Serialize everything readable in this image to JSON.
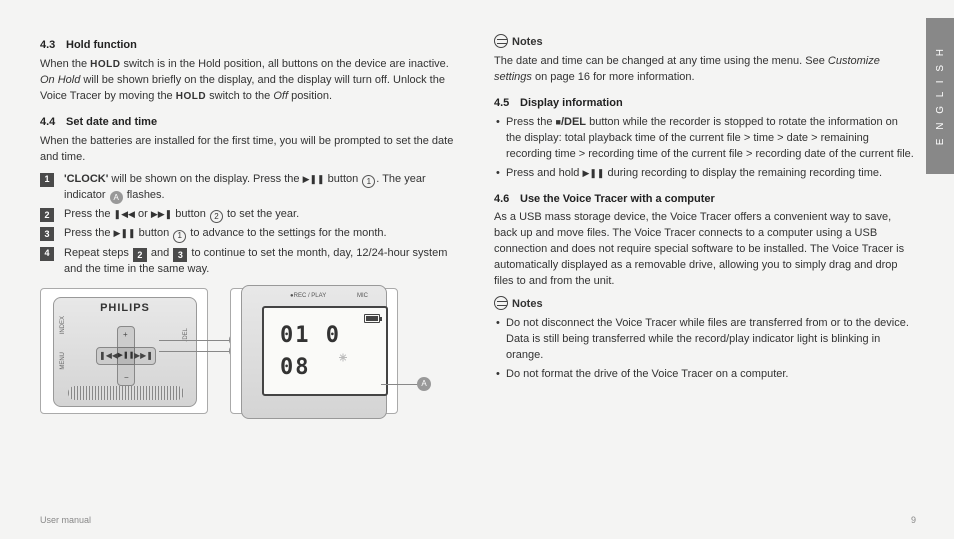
{
  "page_number": "9",
  "footer_left": "User manual",
  "sidebar": "E N G L I S H",
  "brand": "PHILIPS",
  "left": {
    "s43": {
      "num": "4.3",
      "title": "Hold function",
      "p1_a": "When the ",
      "p1_bold1": "HOLD",
      "p1_b": " switch is in the Hold position, all buttons on the device are inactive. ",
      "p1_em": "On Hold",
      "p1_c": " will be shown briefly on the display, and the display will turn off. Unlock the Voice Tracer by moving the ",
      "p1_bold2": "HOLD",
      "p1_d": " switch to the ",
      "p1_em2": "Off",
      "p1_e": " position."
    },
    "s44": {
      "num": "4.4",
      "title": "Set date and time",
      "intro": "When the batteries are installed for the first time, you will be prompted to set the date and time.",
      "step1_a": "'CLOCK'",
      "step1_b": " will be shown on the display. Press the ",
      "step1_btn": "▶❚❚",
      "step1_c": " button ",
      "step1_d": ". The year indicator ",
      "step1_e": " flashes.",
      "step2_a": "Press the ",
      "step2_btn1": "❚◀◀",
      "step2_b": " or ",
      "step2_btn2": "▶▶❚",
      "step2_c": " button ",
      "step2_d": " to set the year.",
      "step3_a": "Press the ",
      "step3_btn": "▶❚❚",
      "step3_b": " button ",
      "step3_c": " to advance to the settings for the month.",
      "step4_a": "Repeat steps ",
      "step4_b": " and ",
      "step4_c": " to continue to set the month, day, 12/24-hour system and the time in the same way."
    },
    "fig": {
      "callout1": "1",
      "callout2": "2",
      "calloutA": "A",
      "rec_label": "REC / PLAY",
      "mic_label": "MIC",
      "digits": "01 0 08",
      "side1": "INDEX",
      "side2": "MENU",
      "side3": "/DEL"
    }
  },
  "right": {
    "notes1_title": "Notes",
    "notes1_a": "The date and time can be changed at any time using the menu. See ",
    "notes1_em": "Customize settings",
    "notes1_b": " on page 16 for more information.",
    "s45": {
      "num": "4.5",
      "title": "Display information",
      "b1_a": "Press the ",
      "b1_btn": "■",
      "b1_bold": "/DEL",
      "b1_b": " button while the recorder is stopped to rotate the information on the display: total playback time of the current file > time > date > remaining recording time > recording time of the current file > recording date of the current file.",
      "b2_a": "Press and hold ",
      "b2_btn": "▶❚❚",
      "b2_b": " during recording to display the remaining recording time."
    },
    "s46": {
      "num": "4.6",
      "title": "Use the Voice Tracer with a computer",
      "p": "As a USB mass storage device, the Voice Tracer offers a convenient way to save, back up and move files. The Voice Tracer connects to a computer using a USB connection and does not require special software to be installed. The Voice Tracer is automatically displayed as a removable drive, allowing you to simply drag and drop files to and from the unit."
    },
    "notes2_title": "Notes",
    "notes2_b1": "Do not disconnect the Voice Tracer while files are transferred from or to the device. Data is still being transferred while the record/play indicator light is blinking in orange.",
    "notes2_b2": "Do not format the drive of the Voice Tracer on a computer."
  }
}
